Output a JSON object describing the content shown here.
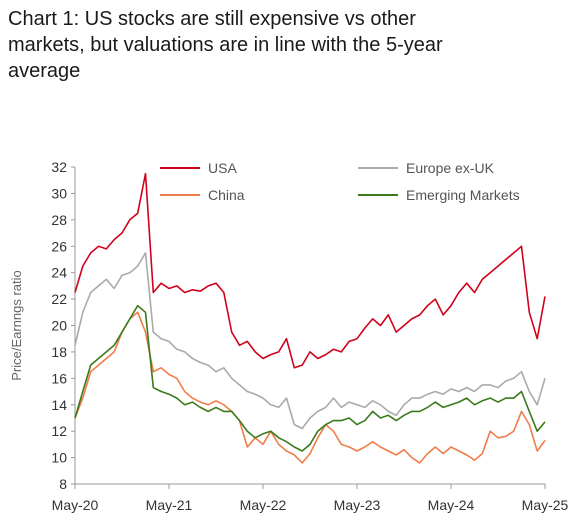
{
  "title_lines": [
    "Chart 1: US stocks are still expensive vs other",
    "markets, but valuations are in line with the 5-year",
    "average"
  ],
  "chart_data": {
    "type": "line",
    "title": "Chart 1: US stocks are still expensive vs other markets, but valuations are in line with the 5-year average",
    "ylabel": "Price/Earnngs ratio",
    "xlabel": "",
    "ylim": [
      8,
      32
    ],
    "yticks": [
      8,
      10,
      12,
      14,
      16,
      18,
      20,
      22,
      24,
      26,
      28,
      30,
      32
    ],
    "xlim": [
      "2020-05",
      "2025-05"
    ],
    "xticks": [
      "May-20",
      "May-21",
      "May-22",
      "May-23",
      "May-24",
      "May-25"
    ],
    "grid": false,
    "legend": "top",
    "series": [
      {
        "name": "USA",
        "color": "#d0021b",
        "x": [
          "2020-05",
          "2020-06",
          "2020-07",
          "2020-08",
          "2020-09",
          "2020-10",
          "2020-11",
          "2020-12",
          "2021-01",
          "2021-02",
          "2021-03",
          "2021-04",
          "2021-05",
          "2021-06",
          "2021-07",
          "2021-08",
          "2021-09",
          "2021-10",
          "2021-11",
          "2021-12",
          "2022-01",
          "2022-02",
          "2022-03",
          "2022-04",
          "2022-05",
          "2022-06",
          "2022-07",
          "2022-08",
          "2022-09",
          "2022-10",
          "2022-11",
          "2022-12",
          "2023-01",
          "2023-02",
          "2023-03",
          "2023-04",
          "2023-05",
          "2023-06",
          "2023-07",
          "2023-08",
          "2023-09",
          "2023-10",
          "2023-11",
          "2023-12",
          "2024-01",
          "2024-02",
          "2024-03",
          "2024-04",
          "2024-05",
          "2024-06",
          "2024-07",
          "2024-08",
          "2024-09",
          "2024-10",
          "2024-11",
          "2024-12",
          "2025-01",
          "2025-02",
          "2025-03",
          "2025-04",
          "2025-05"
        ],
        "y": [
          22.5,
          24.5,
          25.5,
          26.0,
          25.8,
          26.5,
          27.0,
          28.0,
          28.5,
          31.5,
          22.5,
          23.2,
          22.8,
          23.0,
          22.5,
          22.7,
          22.6,
          23.0,
          23.2,
          22.5,
          19.5,
          18.5,
          18.8,
          18.0,
          17.5,
          17.8,
          18.0,
          19.0,
          16.8,
          17.0,
          18.0,
          17.5,
          17.8,
          18.2,
          18.0,
          18.8,
          19.0,
          19.8,
          20.5,
          20.0,
          20.8,
          19.5,
          20.0,
          20.5,
          20.8,
          21.5,
          22.0,
          20.8,
          21.5,
          22.5,
          23.2,
          22.5,
          23.5,
          24.0,
          24.5,
          25.0,
          25.5,
          26.0,
          21.0,
          19.0,
          22.2
        ]
      },
      {
        "name": "Europe ex-UK",
        "color": "#aaaaaa",
        "x": [
          "2020-05",
          "2020-06",
          "2020-07",
          "2020-08",
          "2020-09",
          "2020-10",
          "2020-11",
          "2020-12",
          "2021-01",
          "2021-02",
          "2021-03",
          "2021-04",
          "2021-05",
          "2021-06",
          "2021-07",
          "2021-08",
          "2021-09",
          "2021-10",
          "2021-11",
          "2021-12",
          "2022-01",
          "2022-02",
          "2022-03",
          "2022-04",
          "2022-05",
          "2022-06",
          "2022-07",
          "2022-08",
          "2022-09",
          "2022-10",
          "2022-11",
          "2022-12",
          "2023-01",
          "2023-02",
          "2023-03",
          "2023-04",
          "2023-05",
          "2023-06",
          "2023-07",
          "2023-08",
          "2023-09",
          "2023-10",
          "2023-11",
          "2023-12",
          "2024-01",
          "2024-02",
          "2024-03",
          "2024-04",
          "2024-05",
          "2024-06",
          "2024-07",
          "2024-08",
          "2024-09",
          "2024-10",
          "2024-11",
          "2024-12",
          "2025-01",
          "2025-02",
          "2025-03",
          "2025-04",
          "2025-05"
        ],
        "y": [
          18.5,
          21.0,
          22.5,
          23.0,
          23.5,
          22.8,
          23.8,
          24.0,
          24.5,
          25.5,
          19.5,
          19.0,
          18.8,
          18.2,
          18.0,
          17.5,
          17.2,
          17.0,
          16.5,
          16.8,
          16.0,
          15.5,
          15.0,
          14.8,
          14.5,
          14.0,
          13.8,
          14.5,
          12.5,
          12.2,
          13.0,
          13.5,
          13.8,
          14.5,
          13.8,
          14.2,
          14.0,
          13.8,
          14.3,
          14.0,
          13.5,
          13.2,
          14.0,
          14.5,
          14.5,
          14.8,
          15.0,
          14.8,
          15.2,
          15.0,
          15.3,
          15.0,
          15.5,
          15.5,
          15.3,
          15.8,
          16.0,
          16.5,
          15.0,
          14.0,
          16.0
        ]
      },
      {
        "name": "China",
        "color": "#f07d4a",
        "x": [
          "2020-05",
          "2020-06",
          "2020-07",
          "2020-08",
          "2020-09",
          "2020-10",
          "2020-11",
          "2020-12",
          "2021-01",
          "2021-02",
          "2021-03",
          "2021-04",
          "2021-05",
          "2021-06",
          "2021-07",
          "2021-08",
          "2021-09",
          "2021-10",
          "2021-11",
          "2021-12",
          "2022-01",
          "2022-02",
          "2022-03",
          "2022-04",
          "2022-05",
          "2022-06",
          "2022-07",
          "2022-08",
          "2022-09",
          "2022-10",
          "2022-11",
          "2022-12",
          "2023-01",
          "2023-02",
          "2023-03",
          "2023-04",
          "2023-05",
          "2023-06",
          "2023-07",
          "2023-08",
          "2023-09",
          "2023-10",
          "2023-11",
          "2023-12",
          "2024-01",
          "2024-02",
          "2024-03",
          "2024-04",
          "2024-05",
          "2024-06",
          "2024-07",
          "2024-08",
          "2024-09",
          "2024-10",
          "2024-11",
          "2024-12",
          "2025-01",
          "2025-02",
          "2025-03",
          "2025-04",
          "2025-05"
        ],
        "y": [
          13.0,
          14.5,
          16.5,
          17.0,
          17.5,
          18.0,
          19.5,
          20.5,
          21.0,
          19.5,
          16.5,
          16.8,
          16.3,
          16.0,
          15.0,
          14.5,
          14.2,
          14.0,
          14.3,
          14.0,
          13.5,
          12.8,
          10.8,
          11.5,
          11.0,
          12.0,
          11.0,
          10.5,
          10.2,
          9.6,
          10.3,
          11.5,
          12.5,
          12.0,
          11.0,
          10.8,
          10.5,
          10.8,
          11.2,
          10.8,
          10.5,
          10.2,
          10.6,
          10.0,
          9.6,
          10.3,
          10.8,
          10.3,
          10.8,
          10.5,
          10.2,
          9.8,
          10.3,
          12.0,
          11.5,
          11.6,
          12.0,
          13.5,
          12.5,
          10.5,
          11.3
        ]
      },
      {
        "name": "Emerging Markets",
        "color": "#3a7a1a",
        "x": [
          "2020-05",
          "2020-06",
          "2020-07",
          "2020-08",
          "2020-09",
          "2020-10",
          "2020-11",
          "2020-12",
          "2021-01",
          "2021-02",
          "2021-03",
          "2021-04",
          "2021-05",
          "2021-06",
          "2021-07",
          "2021-08",
          "2021-09",
          "2021-10",
          "2021-11",
          "2021-12",
          "2022-01",
          "2022-02",
          "2022-03",
          "2022-04",
          "2022-05",
          "2022-06",
          "2022-07",
          "2022-08",
          "2022-09",
          "2022-10",
          "2022-11",
          "2022-12",
          "2023-01",
          "2023-02",
          "2023-03",
          "2023-04",
          "2023-05",
          "2023-06",
          "2023-07",
          "2023-08",
          "2023-09",
          "2023-10",
          "2023-11",
          "2023-12",
          "2024-01",
          "2024-02",
          "2024-03",
          "2024-04",
          "2024-05",
          "2024-06",
          "2024-07",
          "2024-08",
          "2024-09",
          "2024-10",
          "2024-11",
          "2024-12",
          "2025-01",
          "2025-02",
          "2025-03",
          "2025-04",
          "2025-05"
        ],
        "y": [
          13.0,
          15.0,
          17.0,
          17.5,
          18.0,
          18.5,
          19.5,
          20.5,
          21.5,
          21.0,
          15.3,
          15.0,
          14.8,
          14.5,
          14.0,
          14.2,
          13.8,
          13.5,
          13.8,
          13.5,
          13.5,
          12.8,
          12.0,
          11.5,
          11.8,
          12.0,
          11.5,
          11.2,
          10.8,
          10.5,
          11.0,
          12.0,
          12.5,
          12.8,
          12.8,
          13.0,
          12.5,
          12.8,
          13.5,
          13.0,
          13.2,
          12.8,
          13.2,
          13.5,
          13.5,
          13.8,
          14.2,
          13.8,
          14.0,
          14.2,
          14.5,
          14.0,
          14.3,
          14.5,
          14.2,
          14.5,
          14.5,
          15.0,
          13.5,
          12.0,
          12.7
        ]
      }
    ]
  }
}
